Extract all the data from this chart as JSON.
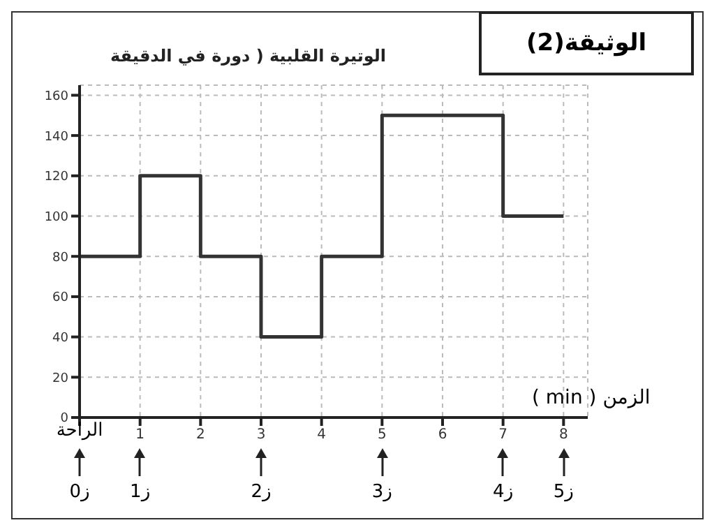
{
  "chart_data": {
    "type": "step",
    "title": "الوثيقة(2)",
    "ylabel": "الوتيرة القلبية ( دورة في الدقيقة",
    "xlabel": "الزمن ( min )",
    "x": [
      0,
      1,
      2,
      3,
      4,
      5,
      7,
      8
    ],
    "values": [
      80,
      120,
      80,
      40,
      80,
      150,
      100,
      100
    ],
    "color": "#333333",
    "marker": "none",
    "line_style": "solid",
    "xlim": [
      0,
      8.4
    ],
    "xticks": [
      {
        "value": 0,
        "label": null
      },
      1,
      2,
      3,
      4,
      5,
      6,
      7,
      8
    ],
    "ylim": [
      0,
      165
    ],
    "yticks": [
      0,
      20,
      40,
      60,
      80,
      100,
      120,
      140,
      160
    ],
    "grid": true,
    "annotations": [
      "الراحة",
      "ز0",
      "ز1",
      "ز2",
      "ز3",
      "ز4",
      "ز5"
    ]
  }
}
